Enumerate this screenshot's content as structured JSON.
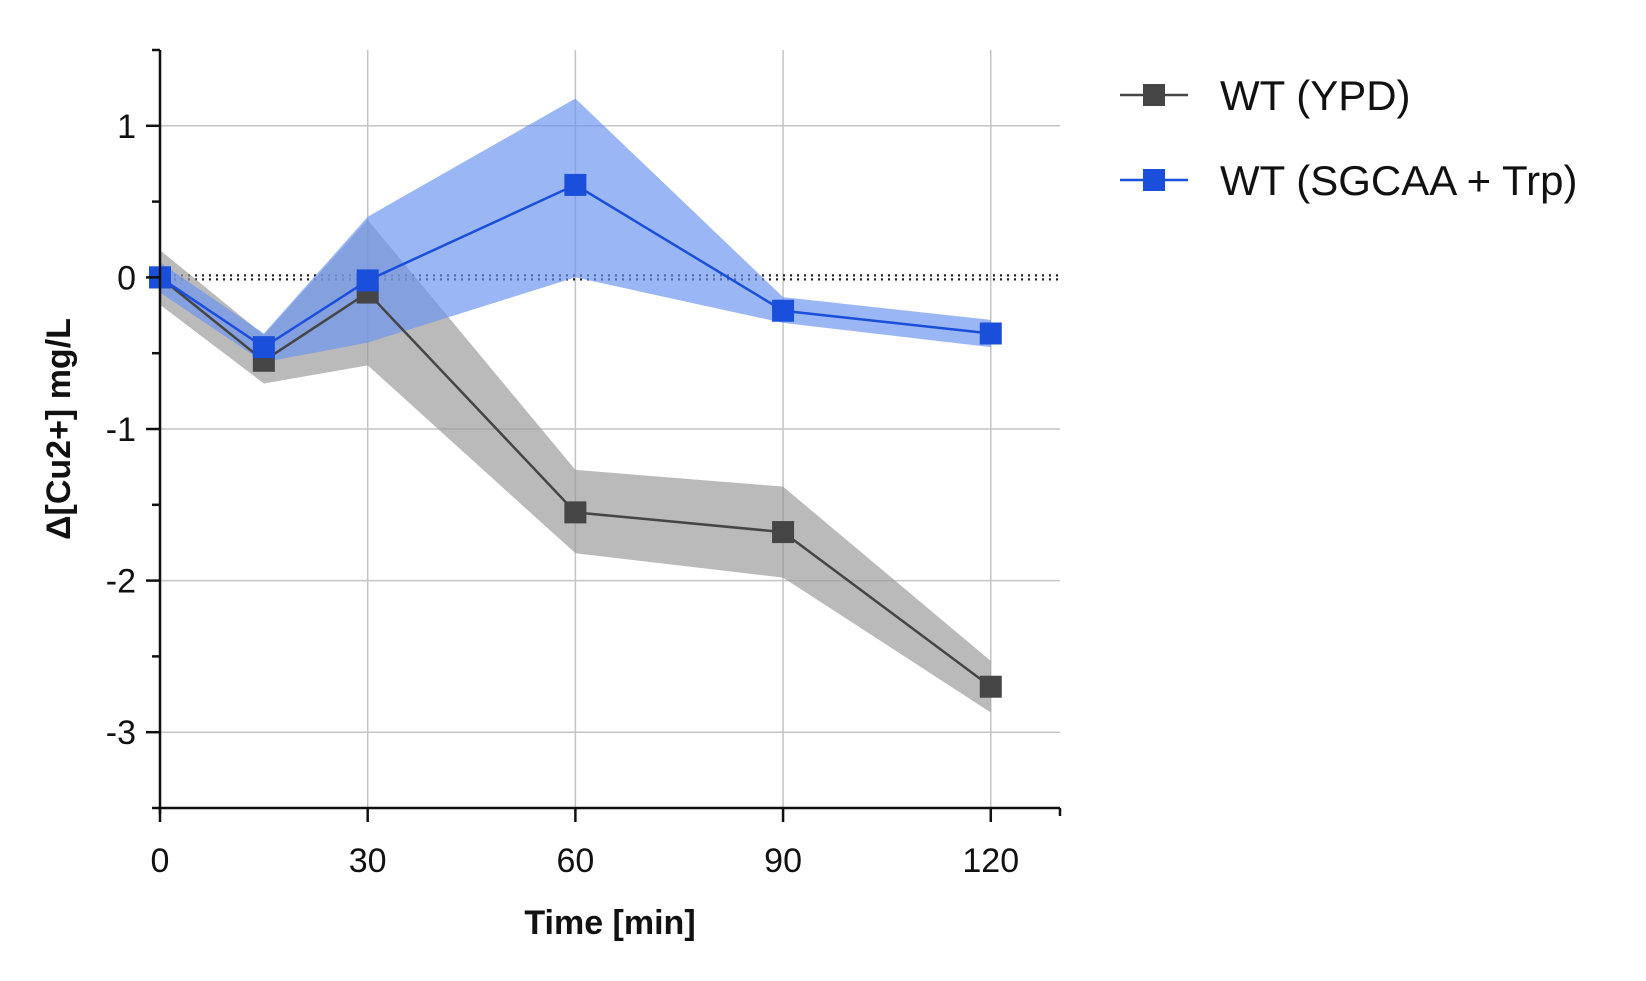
{
  "chart_data": {
    "type": "line",
    "title": "",
    "xlabel": "Time [min]",
    "ylabel": "Δ[Cu2+] mg/L",
    "x": [
      0,
      15,
      30,
      60,
      90,
      120
    ],
    "xlim": [
      0,
      130
    ],
    "ylim": [
      -3.5,
      1.5
    ],
    "x_ticks": [
      0,
      30,
      60,
      90,
      120
    ],
    "x_tick_labels": [
      "0",
      "30",
      "60",
      "90",
      "120"
    ],
    "y_ticks": [
      -3,
      -2,
      -1,
      0,
      1
    ],
    "y_tick_labels": [
      "-3",
      "-2",
      "-1",
      "0",
      "1"
    ],
    "y_minor_ticks": [
      -3.5,
      -2.5,
      -1.5,
      -0.5,
      0.5,
      1.5
    ],
    "grid": true,
    "reference_line": {
      "y": 0,
      "style": "dotted"
    },
    "legend_position": "top-right, outside plot",
    "series": [
      {
        "name": "WT (YPD)",
        "color": "#454545",
        "band_color": "#9a9a9a",
        "values": [
          0.0,
          -0.55,
          -0.1,
          -1.55,
          -1.68,
          -2.7
        ],
        "lower": [
          -0.18,
          -0.7,
          -0.58,
          -1.82,
          -1.98,
          -2.87
        ],
        "upper": [
          0.18,
          -0.38,
          0.38,
          -1.27,
          -1.38,
          -2.53
        ]
      },
      {
        "name": "WT (SGCAA + Trp)",
        "color": "#1a4fdc",
        "band_color": "#6a93ef",
        "values": [
          0.0,
          -0.46,
          -0.02,
          0.61,
          -0.22,
          -0.37
        ],
        "lower": [
          -0.1,
          -0.56,
          -0.43,
          0.0,
          -0.3,
          -0.46
        ],
        "upper": [
          0.1,
          -0.37,
          0.4,
          1.18,
          -0.13,
          -0.28
        ]
      }
    ]
  }
}
